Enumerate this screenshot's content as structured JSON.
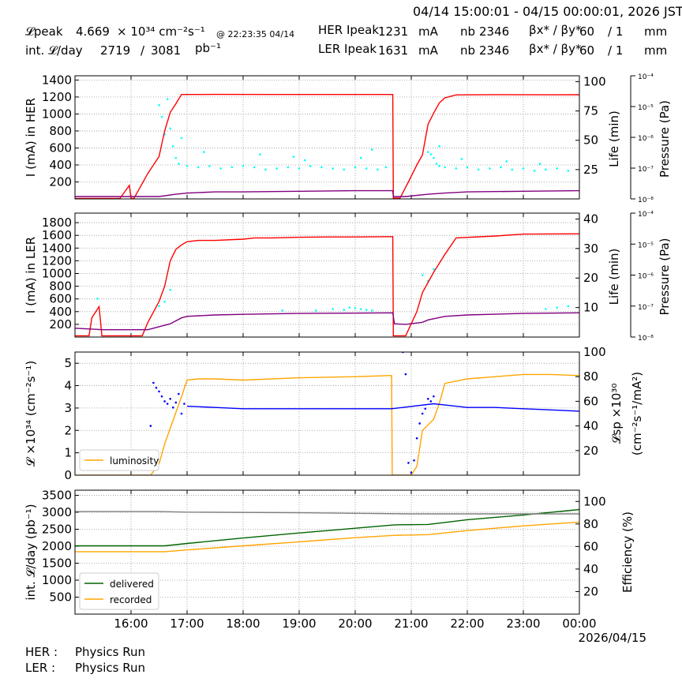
{
  "header": {
    "time_range": "04/14 15:00:01 - 04/15 00:00:01, 2026 JST",
    "row1": {
      "lumi_label": "𝓛peak",
      "lumi_value": "4.669",
      "lumi_unit": "× 10³⁴ cm⁻²s⁻¹",
      "lumi_time": "@ 22:23:35 04/14",
      "her_label": "HER Ipeak",
      "her_value": "1231",
      "her_unit": "mA",
      "nb_label": "nb",
      "nb_value": "2346",
      "beta_label": "βx* / βy*",
      "beta_value": "60",
      "beta_sep": "/ 1",
      "beta_unit": "mm"
    },
    "row2": {
      "int_label": "int. 𝓛/day",
      "int_value": "2719",
      "int_sep": "/",
      "int_total": "3081",
      "int_unit": "pb⁻¹",
      "ler_label": "LER Ipeak",
      "ler_value": "1631",
      "ler_unit": "mA",
      "nb_label": "nb",
      "nb_value": "2346",
      "beta_label": "βx* / βy*",
      "beta_value": "60",
      "beta_sep": "/ 1",
      "beta_unit": "mm"
    }
  },
  "footer": {
    "her_label": "HER :",
    "her_status": "Physics Run",
    "ler_label": "LER :",
    "ler_status": "Physics Run"
  },
  "chart_data": [
    {
      "type": "line",
      "panel": "HER",
      "ylabel": "I (mA) in HER",
      "ylim": [
        0,
        1450
      ],
      "yticks": [
        200,
        400,
        600,
        800,
        1000,
        1200,
        1400
      ],
      "right_ylabel": "Life (min)",
      "right_ylim": [
        0,
        105
      ],
      "right_yticks": [
        25,
        50,
        75,
        100
      ],
      "pressure_label": "Pressure (Pa)",
      "pressure_ticks": [
        "10⁻⁴",
        "10⁻⁵",
        "10⁻⁶",
        "10⁻⁷",
        "10⁻⁸"
      ],
      "xlim": [
        15.0,
        24.0
      ],
      "grid": true,
      "series": [
        {
          "axis": "left",
          "color": "#ff0000",
          "x": [
            15.0,
            15.8,
            15.97,
            16.0,
            16.05,
            16.3,
            16.5,
            16.6,
            16.7,
            16.8,
            16.9,
            17.0,
            17.5,
            18.5,
            19.5,
            20.6,
            20.67,
            20.68,
            20.7,
            20.8,
            20.95,
            21.1,
            21.2,
            21.3,
            21.4,
            21.5,
            21.6,
            21.8,
            22.5,
            23.5,
            24.0
          ],
          "y": [
            5,
            5,
            160,
            5,
            5,
            300,
            500,
            800,
            1020,
            1120,
            1230,
            1230,
            1231,
            1230,
            1230,
            1230,
            1230,
            10,
            10,
            10,
            200,
            400,
            520,
            880,
            1010,
            1130,
            1190,
            1225,
            1228,
            1226,
            1227
          ]
        },
        {
          "axis": "right",
          "color": "#800080",
          "x": [
            15.0,
            16.0,
            16.5,
            16.8,
            17.0,
            17.5,
            18.0,
            19.0,
            20.0,
            20.67,
            20.68,
            20.9,
            21.3,
            21.6,
            22.0,
            23.0,
            24.0
          ],
          "y": [
            2,
            2,
            2,
            4,
            5,
            6,
            6,
            6.5,
            7,
            7,
            2,
            2,
            4,
            5,
            6,
            6.5,
            7
          ]
        }
      ],
      "scatter": {
        "color": "#00ffff",
        "axis": "right",
        "x": [
          16.5,
          16.55,
          16.6,
          16.65,
          16.7,
          16.75,
          16.8,
          16.85,
          17.0,
          17.2,
          17.4,
          17.6,
          17.8,
          18.0,
          18.2,
          18.4,
          18.6,
          18.8,
          19.0,
          19.2,
          19.4,
          19.6,
          19.8,
          20.0,
          20.2,
          20.4,
          20.55,
          21.3,
          21.35,
          21.4,
          21.45,
          21.5,
          21.6,
          21.8,
          22.0,
          22.2,
          22.4,
          22.6,
          22.8,
          23.0,
          23.2,
          23.4,
          23.6,
          23.8,
          18.3,
          19.1,
          20.1,
          21.5,
          22.7,
          16.9,
          17.3,
          18.9,
          20.3,
          21.9,
          23.3
        ],
        "y": [
          80,
          70,
          55,
          85,
          60,
          45,
          35,
          30,
          28,
          27,
          28,
          26,
          27,
          28,
          27,
          25,
          26,
          27,
          26,
          28,
          27,
          26,
          25,
          27,
          26,
          25,
          27,
          40,
          38,
          35,
          30,
          28,
          27,
          26,
          27,
          25,
          26,
          27,
          25,
          26,
          24,
          25,
          26,
          24,
          38,
          33,
          35,
          45,
          32,
          52,
          40,
          36,
          42,
          34,
          30
        ]
      }
    },
    {
      "type": "line",
      "panel": "LER",
      "ylabel": "I (mA) in LER",
      "ylim": [
        0,
        1950
      ],
      "yticks": [
        200,
        400,
        600,
        800,
        1000,
        1200,
        1400,
        1600,
        1800
      ],
      "right_ylabel": "Life (min)",
      "right_ylim": [
        0,
        42
      ],
      "right_yticks": [
        10,
        20,
        30,
        40
      ],
      "pressure_label": "Pressure (Pa)",
      "pressure_ticks": [
        "10⁻⁴",
        "10⁻⁵",
        "10⁻⁶",
        "10⁻⁷",
        "10⁻⁸"
      ],
      "xlim": [
        15.0,
        24.0
      ],
      "grid": true,
      "series": [
        {
          "axis": "left",
          "color": "#ff0000",
          "x": [
            15.0,
            15.25,
            15.3,
            15.43,
            15.48,
            16.2,
            16.3,
            16.5,
            16.6,
            16.7,
            16.8,
            16.9,
            17.0,
            17.2,
            17.5,
            18.0,
            18.2,
            18.5,
            19.0,
            19.5,
            20.0,
            20.6,
            20.67,
            20.68,
            20.9,
            21.1,
            21.2,
            21.4,
            21.6,
            21.8,
            22.5,
            23.0,
            24.0
          ],
          "y": [
            20,
            20,
            300,
            480,
            20,
            20,
            230,
            560,
            800,
            1200,
            1380,
            1450,
            1500,
            1520,
            1520,
            1540,
            1560,
            1560,
            1570,
            1575,
            1575,
            1580,
            1580,
            20,
            20,
            400,
            700,
            1020,
            1300,
            1560,
            1590,
            1620,
            1625
          ]
        },
        {
          "axis": "right",
          "color": "#800080",
          "x": [
            15.0,
            15.5,
            16.3,
            16.7,
            16.9,
            17.0,
            17.5,
            18.0,
            19.0,
            20.0,
            20.67,
            20.7,
            20.9,
            21.2,
            21.3,
            21.6,
            22.0,
            23.0,
            24.0
          ],
          "y": [
            3.0,
            2.5,
            2.5,
            4.5,
            6.5,
            7.0,
            7.5,
            7.7,
            8.0,
            8.1,
            8.2,
            4.5,
            4.3,
            5.0,
            5.8,
            7.0,
            7.5,
            8.0,
            8.2
          ]
        }
      ],
      "scatter": {
        "color": "#00ffff",
        "axis": "right",
        "x": [
          15.4,
          16.5,
          16.6,
          16.7,
          18.7,
          19.3,
          19.6,
          19.8,
          19.9,
          20.0,
          20.1,
          20.2,
          20.3,
          21.2,
          21.3,
          21.4,
          23.4,
          23.6,
          23.8
        ],
        "y": [
          13,
          10.5,
          12,
          16,
          9,
          9,
          9.5,
          9.2,
          10,
          9.8,
          9.5,
          9.2,
          9.0,
          21,
          19,
          23,
          9.5,
          10,
          10.5
        ]
      }
    },
    {
      "type": "line",
      "panel": "Luminosity",
      "ylabel": "𝓛 ×10³⁴ (cm⁻²s⁻¹)",
      "ylim": [
        0,
        5.5
      ],
      "yticks": [
        0,
        1,
        2,
        3,
        4,
        5
      ],
      "right_ylabel": "𝓛sp ×10³⁰ (cm⁻²s⁻¹/mA²)",
      "right_ylim": [
        0,
        100
      ],
      "right_yticks": [
        20,
        40,
        60,
        80,
        100
      ],
      "xlim": [
        15.0,
        24.0
      ],
      "grid": true,
      "legend": "lower-left",
      "series": [
        {
          "name": "luminosity",
          "axis": "left",
          "color": "#ffa500",
          "x": [
            15.0,
            16.35,
            16.5,
            16.6,
            16.7,
            16.8,
            16.9,
            17.0,
            17.2,
            17.5,
            18.0,
            19.0,
            20.0,
            20.6,
            20.65,
            20.66,
            21.0,
            21.1,
            21.2,
            21.4,
            21.5,
            21.6,
            22.0,
            22.5,
            23.0,
            23.5,
            24.0
          ],
          "y": [
            0,
            0,
            0.5,
            1.4,
            2.1,
            2.8,
            3.5,
            4.25,
            4.3,
            4.3,
            4.25,
            4.35,
            4.4,
            4.45,
            4.45,
            0,
            0,
            0.4,
            2.0,
            2.5,
            3.2,
            4.1,
            4.3,
            4.4,
            4.5,
            4.5,
            4.45
          ]
        },
        {
          "axis": "right",
          "color": "#0000ff",
          "x": [
            17.0,
            17.5,
            18.0,
            18.5,
            19.0,
            19.5,
            20.0,
            20.5,
            20.65,
            21.4,
            21.6,
            22.0,
            22.5,
            23.0,
            23.5,
            24.0
          ],
          "y": [
            56,
            55,
            54,
            54,
            54,
            54,
            54,
            54,
            54,
            58,
            57,
            55,
            55,
            54,
            53,
            52
          ]
        }
      ],
      "scatter": {
        "color": "#0000ff",
        "axis": "right",
        "x": [
          16.35,
          16.4,
          16.45,
          16.5,
          16.55,
          16.6,
          16.65,
          16.7,
          16.75,
          16.8,
          16.85,
          16.9,
          16.95,
          20.85,
          20.9,
          20.95,
          21.0,
          21.05,
          21.1,
          21.15,
          21.2,
          21.25,
          21.3,
          21.35,
          21.4
        ],
        "y": [
          40,
          75,
          71,
          68,
          64,
          60,
          58,
          62,
          55,
          59,
          66,
          50,
          58,
          100,
          82,
          10,
          2,
          12,
          30,
          42,
          50,
          54,
          62,
          60,
          64
        ]
      }
    },
    {
      "type": "line",
      "panel": "Integrated",
      "ylabel": "int. 𝓛/day (pb⁻¹)",
      "ylim": [
        0,
        3650
      ],
      "yticks": [
        500,
        1000,
        1500,
        2000,
        2500,
        3000,
        3500
      ],
      "right_ylabel": "Efficiency (%)",
      "right_ylim": [
        0,
        110
      ],
      "right_yticks": [
        20,
        40,
        60,
        80,
        100
      ],
      "xlim": [
        15.0,
        24.0
      ],
      "xticks": [
        "16:00",
        "17:00",
        "18:00",
        "19:00",
        "20:00",
        "21:00",
        "22:00",
        "23:00",
        "00:00"
      ],
      "xtick_values": [
        16,
        17,
        18,
        19,
        20,
        21,
        22,
        23,
        24
      ],
      "date_label": "2026/04/15",
      "grid": true,
      "legend": "lower-left",
      "series": [
        {
          "name": "delivered",
          "axis": "left",
          "color": "#006400",
          "x": [
            15.0,
            16.6,
            17.0,
            18.0,
            19.0,
            20.0,
            20.7,
            21.3,
            22.0,
            23.0,
            24.0
          ],
          "y": [
            2010,
            2010,
            2080,
            2240,
            2390,
            2530,
            2630,
            2640,
            2780,
            2920,
            3080
          ]
        },
        {
          "name": "recorded",
          "axis": "left",
          "color": "#ffa500",
          "x": [
            15.0,
            16.6,
            17.0,
            18.0,
            19.0,
            20.0,
            20.7,
            21.3,
            22.0,
            23.0,
            24.0
          ],
          "y": [
            1840,
            1840,
            1890,
            2010,
            2130,
            2250,
            2320,
            2340,
            2460,
            2600,
            2710
          ]
        },
        {
          "axis": "right",
          "color": "#808080",
          "x": [
            15.0,
            16.5,
            17.0,
            19.0,
            20.0,
            21.0,
            22.0,
            23.0,
            24.0
          ],
          "y": [
            91,
            91,
            90.5,
            90,
            89.5,
            89,
            89,
            89,
            89
          ]
        }
      ]
    }
  ]
}
